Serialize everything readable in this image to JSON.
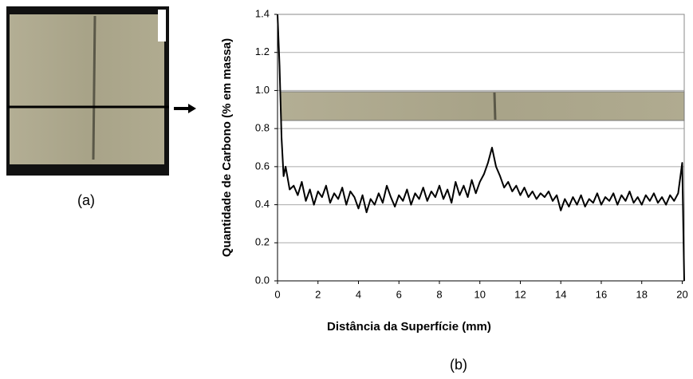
{
  "chart_data": {
    "type": "line",
    "xlabel": "Distância da Superfície (mm)",
    "ylabel": "Quantidade de Carbono (% em massa)",
    "x": [
      0,
      0.1,
      0.2,
      0.3,
      0.4,
      0.6,
      0.8,
      1.0,
      1.2,
      1.4,
      1.6,
      1.8,
      2.0,
      2.2,
      2.4,
      2.6,
      2.8,
      3.0,
      3.2,
      3.4,
      3.6,
      3.8,
      4.0,
      4.2,
      4.4,
      4.6,
      4.8,
      5.0,
      5.2,
      5.4,
      5.6,
      5.8,
      6.0,
      6.2,
      6.4,
      6.6,
      6.8,
      7.0,
      7.2,
      7.4,
      7.6,
      7.8,
      8.0,
      8.2,
      8.4,
      8.6,
      8.8,
      9.0,
      9.2,
      9.4,
      9.6,
      9.8,
      10.0,
      10.2,
      10.4,
      10.6,
      10.8,
      11.0,
      11.2,
      11.4,
      11.6,
      11.8,
      12.0,
      12.2,
      12.4,
      12.6,
      12.8,
      13.0,
      13.2,
      13.4,
      13.6,
      13.8,
      14.0,
      14.2,
      14.4,
      14.6,
      14.8,
      15.0,
      15.2,
      15.4,
      15.6,
      15.8,
      16.0,
      16.2,
      16.4,
      16.6,
      16.8,
      17.0,
      17.2,
      17.4,
      17.6,
      17.8,
      18.0,
      18.2,
      18.4,
      18.6,
      18.8,
      19.0,
      19.2,
      19.4,
      19.6,
      19.8,
      20.0,
      20.1
    ],
    "series": [
      {
        "color": "#000000",
        "values": [
          1.4,
          1.13,
          0.75,
          0.55,
          0.6,
          0.48,
          0.5,
          0.45,
          0.52,
          0.42,
          0.48,
          0.4,
          0.47,
          0.44,
          0.5,
          0.41,
          0.46,
          0.43,
          0.49,
          0.4,
          0.47,
          0.44,
          0.38,
          0.45,
          0.36,
          0.43,
          0.4,
          0.46,
          0.41,
          0.5,
          0.44,
          0.39,
          0.45,
          0.42,
          0.48,
          0.4,
          0.46,
          0.43,
          0.49,
          0.42,
          0.47,
          0.44,
          0.5,
          0.43,
          0.48,
          0.41,
          0.52,
          0.45,
          0.5,
          0.44,
          0.53,
          0.46,
          0.52,
          0.56,
          0.62,
          0.7,
          0.6,
          0.55,
          0.49,
          0.52,
          0.47,
          0.5,
          0.45,
          0.49,
          0.44,
          0.47,
          0.43,
          0.46,
          0.44,
          0.47,
          0.42,
          0.45,
          0.37,
          0.43,
          0.39,
          0.44,
          0.4,
          0.45,
          0.39,
          0.43,
          0.41,
          0.46,
          0.4,
          0.44,
          0.42,
          0.46,
          0.4,
          0.45,
          0.42,
          0.47,
          0.41,
          0.44,
          0.4,
          0.45,
          0.42,
          0.46,
          0.41,
          0.44,
          0.4,
          0.45,
          0.42,
          0.46,
          0.62,
          0.0
        ]
      }
    ],
    "xlim": [
      0,
      20.1
    ],
    "xticks": [
      0,
      2,
      4,
      6,
      8,
      10,
      12,
      14,
      16,
      18,
      20
    ],
    "ylim": [
      0,
      1.4
    ],
    "yticks": [
      {
        "value": 0,
        "label": "0.0"
      },
      0.2,
      0.4,
      0.6,
      0.8,
      {
        "value": 1,
        "label": "1.0"
      },
      1.2,
      1.4
    ],
    "grid": true
  },
  "captions": [
    "(a)",
    "(b)"
  ]
}
